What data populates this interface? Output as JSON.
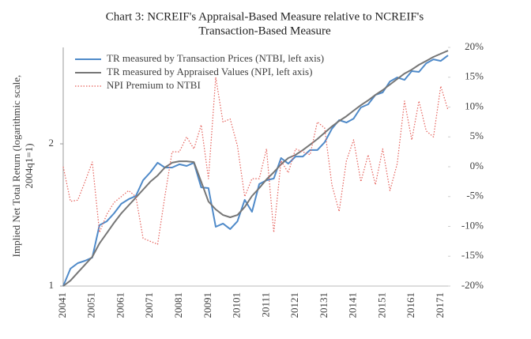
{
  "chart_data": {
    "type": "line",
    "title": [
      "Chart 3: NCREIF's Appraisal-Based Measure relative to NCREIF's",
      "Transaction-Based Measure"
    ],
    "ylabel": [
      "Implied Net Total Return (logarithmic scale,",
      "2004q1=1)"
    ],
    "categories": [
      "20041",
      null,
      null,
      null,
      "20051",
      null,
      null,
      null,
      "20061",
      null,
      null,
      null,
      "20071",
      null,
      null,
      null,
      "20081",
      null,
      null,
      null,
      "20091",
      null,
      null,
      null,
      "20101",
      null,
      null,
      null,
      "20111",
      null,
      null,
      null,
      "20121",
      null,
      null,
      null,
      "20131",
      null,
      null,
      null,
      "20141",
      null,
      null,
      null,
      "20151",
      null,
      null,
      null,
      "20161",
      null,
      null,
      null,
      "20171",
      null
    ],
    "series": [
      {
        "name": "TR measured by Transaction Prices (NTBI, left axis)",
        "color": "#4f8ac9",
        "line_style": "solid",
        "axis": "y",
        "values": [
          1.0,
          1.089,
          1.118,
          1.131,
          1.149,
          1.345,
          1.371,
          1.425,
          1.493,
          1.527,
          1.551,
          1.675,
          1.741,
          1.824,
          1.782,
          1.782,
          1.81,
          1.796,
          1.824,
          1.618,
          1.612,
          1.335,
          1.356,
          1.32,
          1.371,
          1.522,
          1.436,
          1.644,
          1.675,
          1.689,
          1.866,
          1.816,
          1.88,
          1.88,
          1.94,
          1.94,
          2.015,
          2.152,
          2.245,
          2.219,
          2.262,
          2.388,
          2.425,
          2.539,
          2.569,
          2.711,
          2.764,
          2.732,
          2.851,
          2.84,
          2.962,
          3.019,
          2.996,
          3.078
        ]
      },
      {
        "name": "TR measured by Appraised Values (NPI, left axis)",
        "color": "#767676",
        "line_style": "solid",
        "axis": "y",
        "values": [
          1.0,
          1.027,
          1.068,
          1.11,
          1.153,
          1.231,
          1.294,
          1.361,
          1.425,
          1.481,
          1.539,
          1.6,
          1.663,
          1.714,
          1.782,
          1.824,
          1.837,
          1.837,
          1.83,
          1.663,
          1.51,
          1.453,
          1.414,
          1.398,
          1.414,
          1.47,
          1.551,
          1.612,
          1.682,
          1.741,
          1.81,
          1.866,
          1.895,
          1.94,
          1.992,
          2.047,
          2.111,
          2.177,
          2.236,
          2.288,
          2.351,
          2.415,
          2.472,
          2.539,
          2.599,
          2.67,
          2.743,
          2.817,
          2.872,
          2.94,
          2.996,
          3.055,
          3.103,
          3.15
        ]
      },
      {
        "name": "NPI Premium to NTBI",
        "color": "#e5605a",
        "line_style": "dotted",
        "axis": "y2",
        "values": [
          0,
          -5.8,
          -5.6,
          -2.5,
          0.8,
          -11,
          -8,
          -6,
          -5,
          -4,
          -5,
          -12,
          -12.5,
          -13,
          -5,
          2.5,
          2.5,
          5,
          3,
          7,
          -2,
          15,
          7.5,
          8,
          3.5,
          -5,
          -2,
          -2,
          3,
          -11,
          1,
          -1,
          3,
          2.5,
          2,
          7.5,
          6.5,
          -3,
          -7.5,
          1,
          4.5,
          -2.5,
          2,
          -3,
          3,
          -4,
          0.5,
          11,
          4.5,
          11,
          6,
          5,
          13.5,
          9.5
        ]
      }
    ],
    "ylim": [
      1,
      3.2
    ],
    "yticks": [
      1,
      2
    ],
    "yscale": "log",
    "y2lim": [
      -20,
      20
    ],
    "y2ticks": [
      {
        "value": -20,
        "label": "-20%"
      },
      {
        "value": -15,
        "label": "-15%"
      },
      {
        "value": -10,
        "label": "-10%"
      },
      {
        "value": -5,
        "label": "-5%"
      },
      {
        "value": 0,
        "label": "0%"
      },
      {
        "value": 5,
        "label": "5%"
      },
      {
        "value": 10,
        "label": "10%"
      },
      {
        "value": 15,
        "label": "15%"
      },
      {
        "value": 20,
        "label": "20%"
      }
    ],
    "grid": false,
    "legend": "upper left"
  }
}
